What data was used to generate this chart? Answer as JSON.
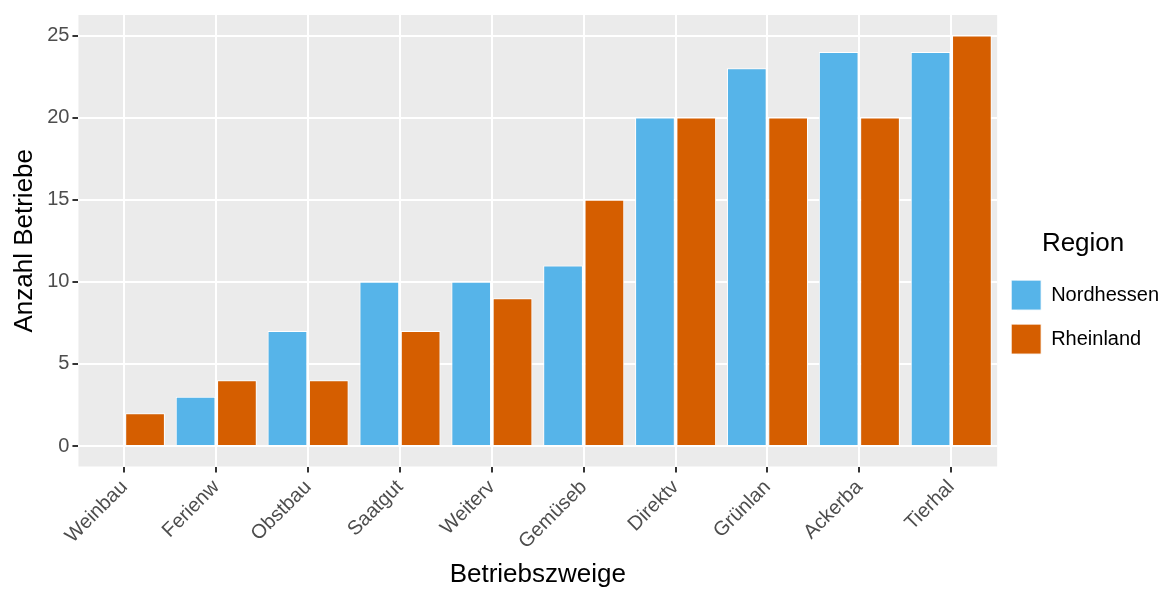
{
  "chart_data": {
    "type": "bar",
    "xlabel": "Betriebszweige",
    "ylabel": "Anzahl Betriebe",
    "legend_title": "Region",
    "categories": [
      "Weinbau",
      "Ferienw",
      "Obstbau",
      "Saatgut",
      "Weiterv",
      "Gemüseb",
      "Direktv",
      "Grünlan",
      "Ackerba",
      "Tierhal"
    ],
    "series": [
      {
        "name": "Nordhessen",
        "color": "#56b4e9",
        "values": [
          null,
          3,
          7,
          10,
          10,
          11,
          20,
          23,
          24,
          24
        ]
      },
      {
        "name": "Rheinland",
        "color": "#d55e00",
        "values": [
          2,
          4,
          4,
          7,
          9,
          15,
          20,
          20,
          20,
          25
        ]
      }
    ],
    "ylim": [
      -1.25,
      26.25
    ],
    "yticks": [
      0,
      5,
      10,
      15,
      20,
      25
    ],
    "grid": true,
    "legend": "right"
  }
}
